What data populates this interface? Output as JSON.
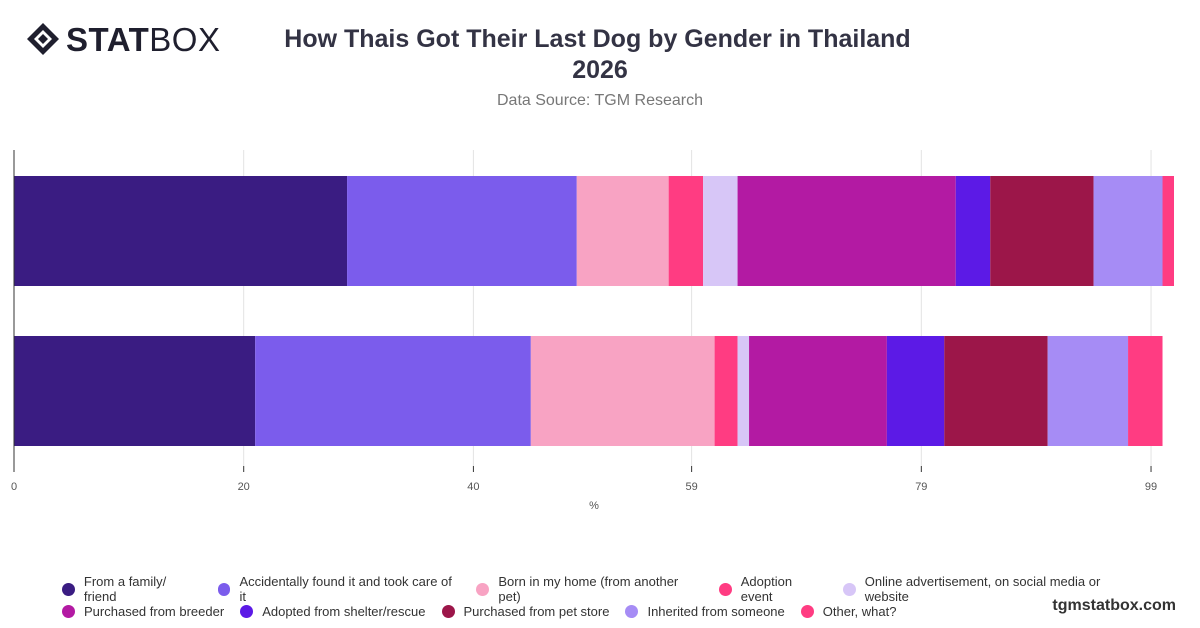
{
  "brand": {
    "logo_bold": "STAT",
    "logo_thin": "BOX",
    "credit": "tgmstatbox.com"
  },
  "header": {
    "title_line1": "How Thais Got Their Last Dog by Gender in Thailand",
    "title_line2": "2026",
    "subtitle": "Data Source: TGM Research"
  },
  "legend": {
    "row1": [
      {
        "label": "From a family/ friend",
        "color": "#3a1c82"
      },
      {
        "label": "Accidentally found it and took care of it",
        "color": "#7b5cec"
      },
      {
        "label": "Born in my home (from another pet)",
        "color": "#f8a3c3"
      },
      {
        "label": "Adoption event",
        "color": "#ff3c82"
      },
      {
        "label": "Online advertisement, on social media or website",
        "color": "#d7c6f7"
      }
    ],
    "row2": [
      {
        "label": "Purchased from breeder",
        "color": "#b31aa3"
      },
      {
        "label": "Adopted from shelter/rescue",
        "color": "#5c1ae6"
      },
      {
        "label": "Purchased from pet store",
        "color": "#9c1649"
      },
      {
        "label": "Inherited from someone",
        "color": "#a68cf5"
      },
      {
        "label": "Other, what?",
        "color": "#ff3c82"
      }
    ]
  },
  "chart_data": {
    "type": "bar",
    "orientation": "horizontal",
    "stacked": true,
    "categories": [
      "",
      ""
    ],
    "xlabel": "%",
    "xlim": [
      0,
      101
    ],
    "xticks": [
      0,
      20,
      40,
      59,
      79,
      99
    ],
    "grid": true,
    "legend_position": "bottom",
    "series": [
      {
        "name": "From a family/ friend",
        "color": "#3a1c82",
        "values": [
          29,
          21
        ]
      },
      {
        "name": "Accidentally found it and took care of it",
        "color": "#7b5cec",
        "values": [
          20,
          24
        ]
      },
      {
        "name": "Born in my home (from another pet)",
        "color": "#f8a3c3",
        "values": [
          8,
          16
        ]
      },
      {
        "name": "Adoption event",
        "color": "#ff3c82",
        "values": [
          3,
          2
        ]
      },
      {
        "name": "Online advertisement, on social media or website",
        "color": "#d7c6f7",
        "values": [
          3,
          1
        ]
      },
      {
        "name": "Purchased from breeder",
        "color": "#b31aa3",
        "values": [
          19,
          12
        ]
      },
      {
        "name": "Adopted from shelter/rescue",
        "color": "#5c1ae6",
        "values": [
          3,
          5
        ]
      },
      {
        "name": "Purchased from pet store",
        "color": "#9c1649",
        "values": [
          9,
          9
        ]
      },
      {
        "name": "Inherited from someone",
        "color": "#a68cf5",
        "values": [
          6,
          7
        ]
      },
      {
        "name": "Other, what?",
        "color": "#ff3c82",
        "values": [
          1,
          3
        ]
      }
    ]
  }
}
